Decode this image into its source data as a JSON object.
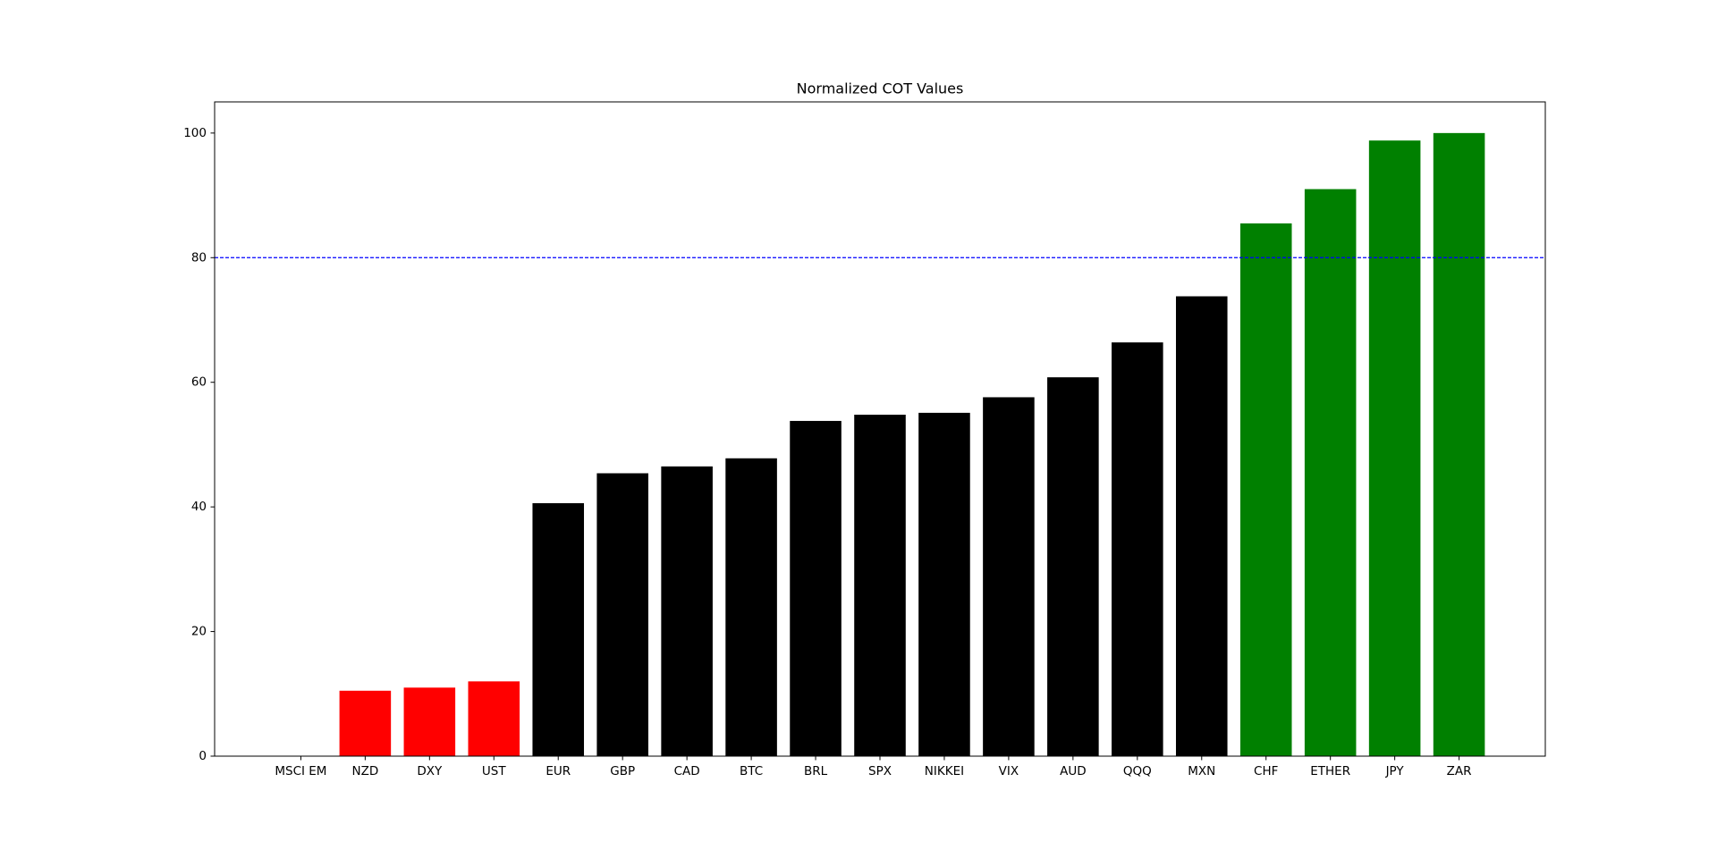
{
  "chart_data": {
    "type": "bar",
    "title": "Normalized COT Values",
    "categories": [
      "MSCI EM",
      "NZD",
      "DXY",
      "UST",
      "EUR",
      "GBP",
      "CAD",
      "BTC",
      "BRL",
      "SPX",
      "NIKKEI",
      "VIX",
      "AUD",
      "QQQ",
      "MXN",
      "CHF",
      "ETHER",
      "JPY",
      "ZAR"
    ],
    "values": [
      0,
      10.5,
      11,
      12,
      40.6,
      45.4,
      46.5,
      47.8,
      53.8,
      54.8,
      55.1,
      57.6,
      60.8,
      66.4,
      73.8,
      85.5,
      91,
      98.8,
      100
    ],
    "colors": [
      "red",
      "red",
      "red",
      "red",
      "black",
      "black",
      "black",
      "black",
      "black",
      "black",
      "black",
      "black",
      "black",
      "black",
      "black",
      "green",
      "green",
      "green",
      "green"
    ],
    "ylim": [
      0,
      105
    ],
    "yticks": [
      0,
      20,
      40,
      60,
      80,
      100
    ],
    "grid": false,
    "reference_line": {
      "value": 80,
      "color": "blue",
      "style": "dashed"
    }
  }
}
